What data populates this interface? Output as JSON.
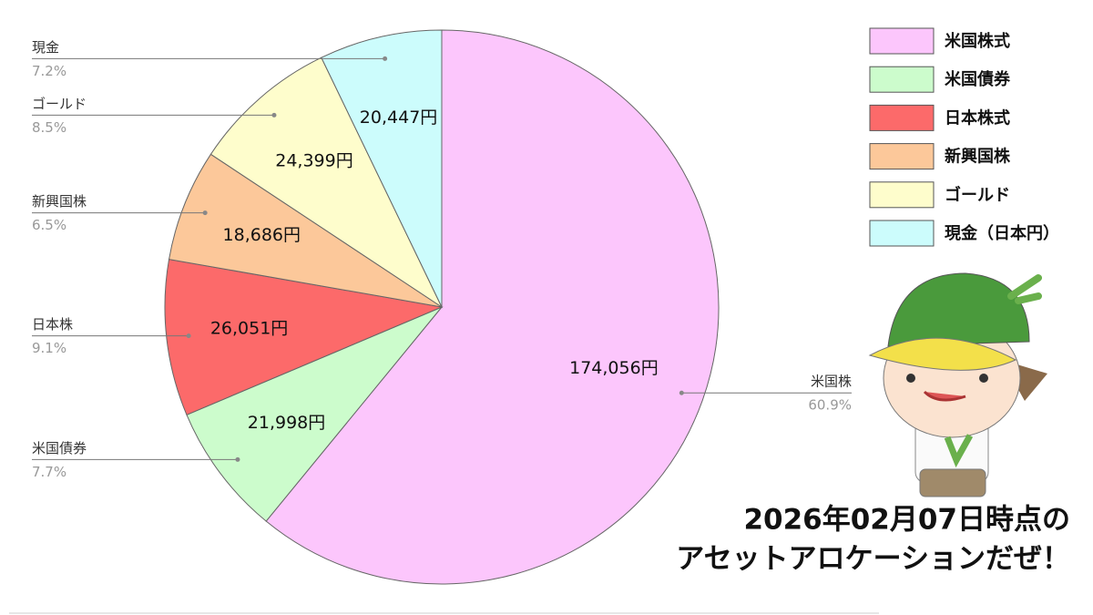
{
  "chart_data": {
    "type": "pie",
    "categories": [
      "米国株式",
      "米国債券",
      "日本株式",
      "新興国株",
      "ゴールド",
      "現金（日本円）"
    ],
    "callout_labels": [
      "米国株",
      "米国債券",
      "日本株",
      "新興国株",
      "ゴールド",
      "現金"
    ],
    "share_labels": [
      "60.9%",
      "7.7%",
      "9.1%",
      "6.5%",
      "8.5%",
      "7.2%"
    ],
    "values": [
      174056,
      21998,
      26051,
      18686,
      24399,
      20447
    ],
    "value_labels": [
      "174,056円",
      "21,998円",
      "26,051円",
      "18,686円",
      "24,399円",
      "20,447円"
    ],
    "colors": [
      "#fcc6fc",
      "#ccfccc",
      "#fc6a6a",
      "#fcc89a",
      "#fefdcc",
      "#ccfcfc"
    ],
    "legend": "top-right",
    "annotation": [
      "2026年02月07日時点の",
      "アセットアロケーションだぜ！"
    ]
  }
}
